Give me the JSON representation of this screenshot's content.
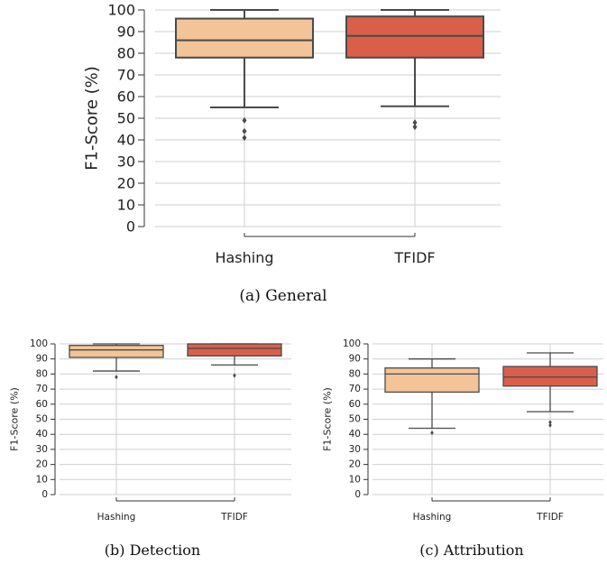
{
  "chart_data": [
    {
      "type": "box",
      "caption": "(a) General",
      "ylabel": "F1-Score (%)",
      "ylim": [
        0,
        100
      ],
      "yticks": [
        0,
        10,
        20,
        30,
        40,
        50,
        60,
        70,
        80,
        90,
        100
      ],
      "grid": true,
      "categories": [
        "Hashing",
        "TFIDF"
      ],
      "colors": [
        "#f2c498",
        "#d95f4a"
      ],
      "boxes": [
        {
          "name": "Hashing",
          "whisker_low": 55,
          "q1": 78,
          "median": 86,
          "q3": 96,
          "whisker_high": 100,
          "outliers": [
            49,
            44,
            41
          ]
        },
        {
          "name": "TFIDF",
          "whisker_low": 55.5,
          "q1": 78,
          "median": 88,
          "q3": 97,
          "whisker_high": 100,
          "outliers": [
            48,
            46
          ]
        }
      ]
    },
    {
      "type": "box",
      "caption": "(b) Detection",
      "ylabel": "F1-Score (%)",
      "ylim": [
        0,
        100
      ],
      "yticks": [
        0,
        10,
        20,
        30,
        40,
        50,
        60,
        70,
        80,
        90,
        100
      ],
      "grid": true,
      "categories": [
        "Hashing",
        "TFIDF"
      ],
      "colors": [
        "#f2c498",
        "#d95f4a"
      ],
      "boxes": [
        {
          "name": "Hashing",
          "whisker_low": 82,
          "q1": 91,
          "median": 96,
          "q3": 99,
          "whisker_high": 100,
          "outliers": [
            78
          ]
        },
        {
          "name": "TFIDF",
          "whisker_low": 86,
          "q1": 92,
          "median": 97,
          "q3": 100,
          "whisker_high": 100,
          "outliers": [
            79
          ]
        }
      ]
    },
    {
      "type": "box",
      "caption": "(c) Attribution",
      "ylabel": "F1-Score (%)",
      "ylim": [
        0,
        100
      ],
      "yticks": [
        0,
        10,
        20,
        30,
        40,
        50,
        60,
        70,
        80,
        90,
        100
      ],
      "grid": true,
      "categories": [
        "Hashing",
        "TFIDF"
      ],
      "colors": [
        "#f2c498",
        "#d95f4a"
      ],
      "boxes": [
        {
          "name": "Hashing",
          "whisker_low": 44,
          "q1": 68,
          "median": 80,
          "q3": 84,
          "whisker_high": 90,
          "outliers": [
            41
          ]
        },
        {
          "name": "TFIDF",
          "whisker_low": 55,
          "q1": 72,
          "median": 78,
          "q3": 85,
          "whisker_high": 94,
          "outliers": [
            48,
            46
          ]
        }
      ]
    }
  ]
}
